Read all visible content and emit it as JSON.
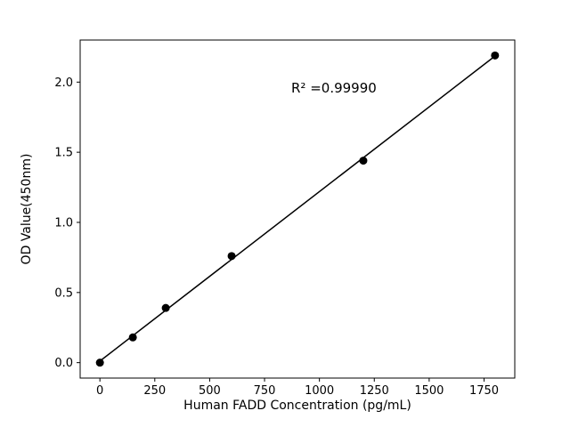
{
  "figure": {
    "background": "#ffffff"
  },
  "chart_data": {
    "type": "scatter",
    "x": [
      0,
      150,
      300,
      600,
      1200,
      1800
    ],
    "y": [
      0.0,
      0.18,
      0.39,
      0.76,
      1.44,
      2.19
    ],
    "fit_line": true,
    "annotation": "R² =0.99990",
    "title": "",
    "xlabel": "Human FADD Concentration (pg/mL)",
    "ylabel": "OD Value(450nm)",
    "xlim": [
      -90,
      1890
    ],
    "ylim": [
      -0.11,
      2.3
    ],
    "xticks": [
      0,
      250,
      500,
      750,
      1000,
      1250,
      1500,
      1750
    ],
    "yticks": [
      "0.0",
      "0.5",
      "1.0",
      "1.5",
      "2.0"
    ],
    "grid": false,
    "legend": false,
    "marker_color": "#000000",
    "line_color": "#000000",
    "frame_color": "#000000"
  }
}
